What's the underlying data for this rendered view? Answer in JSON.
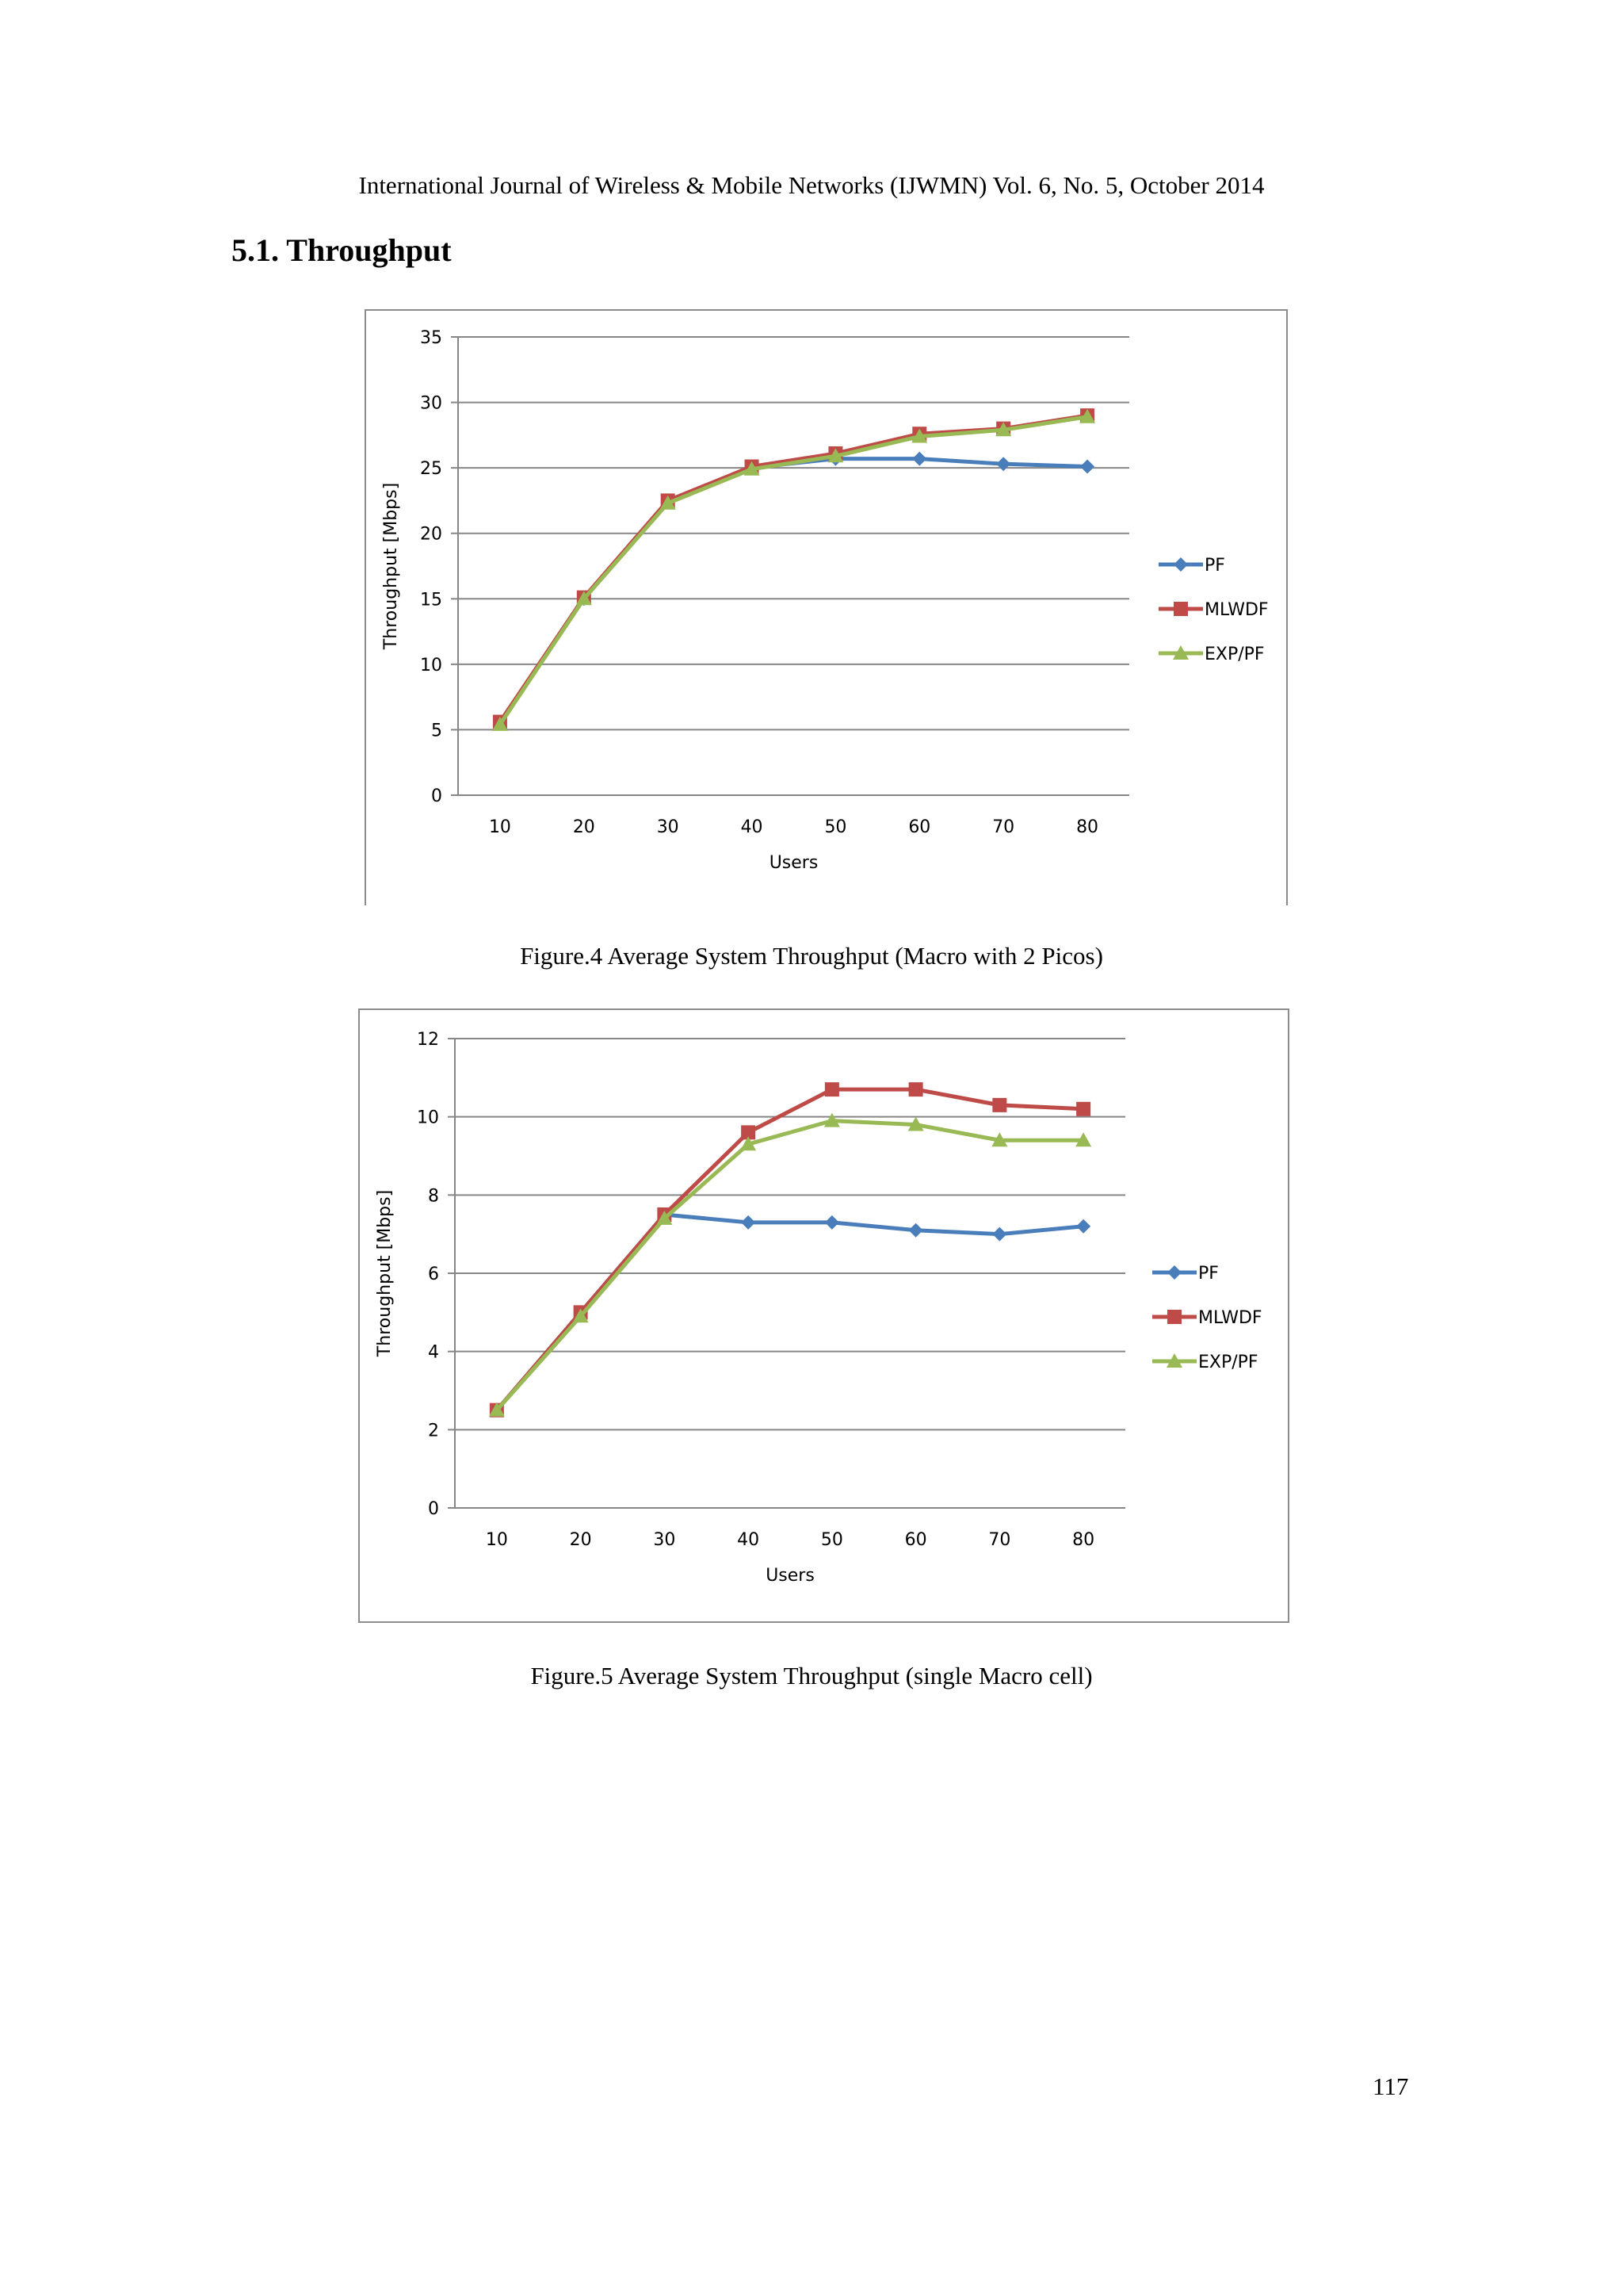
{
  "header": {
    "running_title": "International Journal of Wireless & Mobile Networks (IJWMN) Vol. 6, No. 5, October 2014"
  },
  "section": {
    "heading": "5.1. Throughput"
  },
  "figures": [
    {
      "caption": "Figure.4 Average System Throughput (Macro with 2 Picos)"
    },
    {
      "caption": "Figure.5 Average System Throughput (single Macro cell)"
    }
  ],
  "page": {
    "number": "117"
  },
  "colors": {
    "PF": "#4a7ebb",
    "MLWDF": "#be4b48",
    "EXP/PF": "#98b954"
  },
  "chart_data": [
    {
      "type": "line",
      "title": "",
      "xlabel": "Users",
      "ylabel": "Throughput [Mbps]",
      "categories": [
        "10",
        "20",
        "30",
        "40",
        "50",
        "60",
        "70",
        "80"
      ],
      "ylim": [
        0,
        35
      ],
      "yticks": [
        0,
        5,
        10,
        15,
        20,
        25,
        30,
        35
      ],
      "grid": true,
      "legend_position": "right",
      "series": [
        {
          "name": "PF",
          "marker": "diamond",
          "values": [
            5.5,
            15.0,
            22.4,
            25.0,
            25.7,
            25.7,
            25.3,
            25.1
          ]
        },
        {
          "name": "MLWDF",
          "marker": "square",
          "values": [
            5.6,
            15.1,
            22.5,
            25.1,
            26.1,
            27.6,
            28.0,
            29.0
          ]
        },
        {
          "name": "EXP/PF",
          "marker": "triangle",
          "values": [
            5.4,
            15.0,
            22.3,
            24.9,
            25.9,
            27.4,
            27.9,
            28.9
          ]
        }
      ]
    },
    {
      "type": "line",
      "title": "",
      "xlabel": "Users",
      "ylabel": "Throughput [Mbps]",
      "categories": [
        "10",
        "20",
        "30",
        "40",
        "50",
        "60",
        "70",
        "80"
      ],
      "ylim": [
        0,
        12
      ],
      "yticks": [
        0,
        2,
        4,
        6,
        8,
        10,
        12
      ],
      "grid": true,
      "legend_position": "right",
      "series": [
        {
          "name": "PF",
          "marker": "diamond",
          "values": [
            2.5,
            5.0,
            7.5,
            7.3,
            7.3,
            7.1,
            7.0,
            7.2
          ]
        },
        {
          "name": "MLWDF",
          "marker": "square",
          "values": [
            2.5,
            5.0,
            7.5,
            9.6,
            10.7,
            10.7,
            10.3,
            10.2
          ]
        },
        {
          "name": "EXP/PF",
          "marker": "triangle",
          "values": [
            2.5,
            4.9,
            7.4,
            9.3,
            9.9,
            9.8,
            9.4,
            9.4
          ]
        }
      ]
    }
  ]
}
